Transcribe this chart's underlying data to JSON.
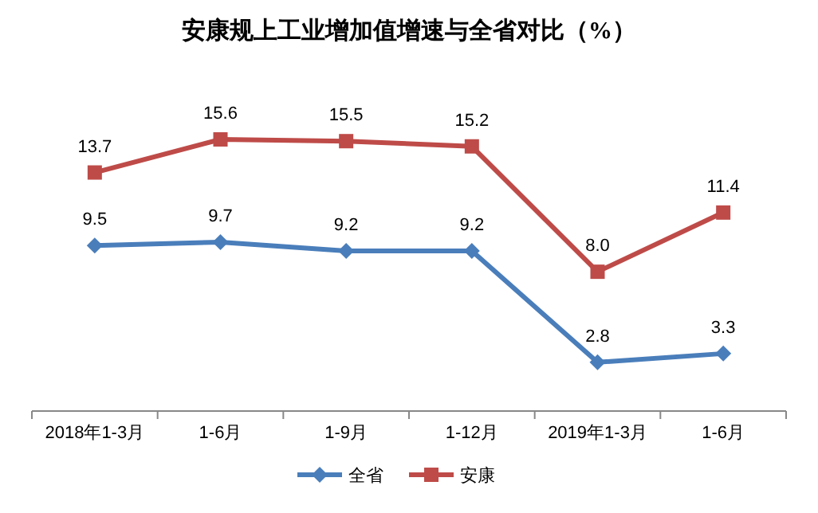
{
  "chart_data": {
    "type": "line",
    "title": "安康规上工业增加值增速与全省对比（%）",
    "categories": [
      "2018年1-3月",
      "1-6月",
      "1-9月",
      "1-12月",
      "2019年1-3月",
      "1-6月"
    ],
    "series": [
      {
        "name": "全省",
        "color": "#4a7ebb",
        "marker": "diamond",
        "values": [
          9.5,
          9.7,
          9.2,
          9.2,
          2.8,
          3.3
        ]
      },
      {
        "name": "安康",
        "color": "#be4b48",
        "marker": "square",
        "values": [
          13.7,
          15.6,
          15.5,
          15.2,
          8.0,
          11.4
        ],
        "value_labels": [
          "13.7",
          "15.6",
          "15.5",
          "15.2",
          "8.0",
          "11.4"
        ]
      }
    ],
    "data_labels": true,
    "legend": "bottom",
    "grid": false,
    "line_style": "solid"
  }
}
